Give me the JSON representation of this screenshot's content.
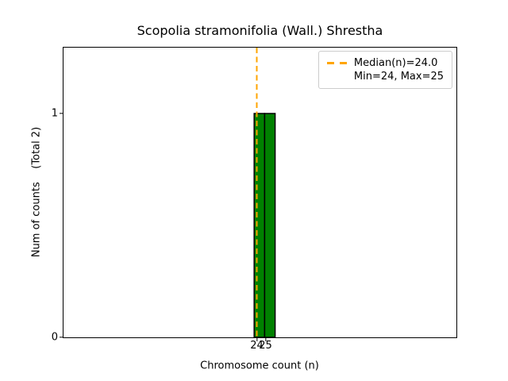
{
  "chart_data": {
    "type": "bar",
    "title": "Scopolia stramonifolia (Wall.) Shrestha",
    "xlabel": "Chromosome count (n)",
    "ylabel": "Num of counts    (Total 2)",
    "values": [
      24,
      25
    ],
    "counts": [
      1,
      1
    ],
    "total": 2,
    "median": 24.0,
    "min": 24,
    "max": 25,
    "bin_edges_estimated": [
      23.7,
      24.9,
      26.1
    ],
    "xticks": [
      24,
      25
    ],
    "yticks": [
      0,
      1
    ],
    "xlim_estimated": [
      2,
      47
    ],
    "ylim_estimated": [
      0,
      1.3
    ],
    "grid": false,
    "legend_position": "upper right",
    "legend": [
      "Median(n)=24.0",
      "Min=24, Max=25"
    ],
    "colors": {
      "bar_fill": "#008000",
      "bar_edge": "#000000",
      "median_line": "#ffa500",
      "legend_border": "#cccccc"
    }
  }
}
